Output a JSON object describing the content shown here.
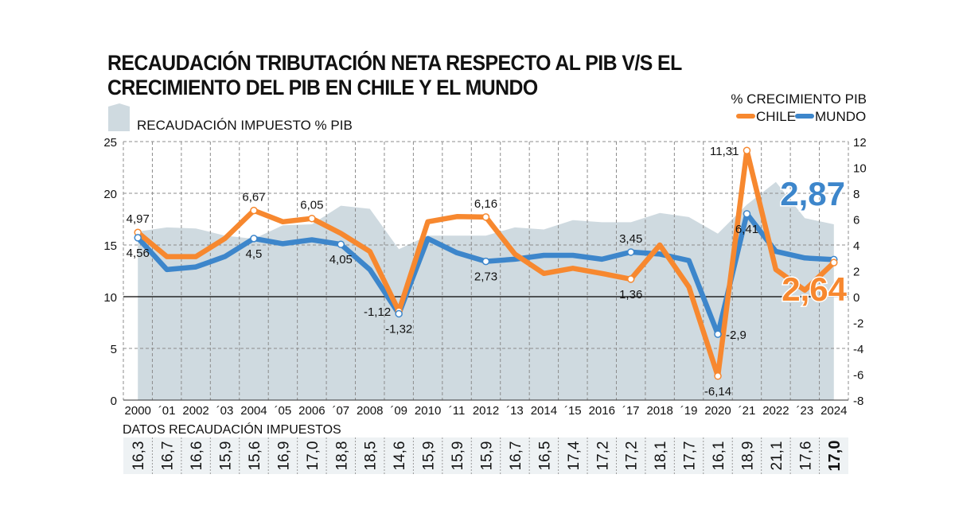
{
  "title": "RECAUDACIÓN TRIBUTACIÓN NETA RESPECTO AL PIB V/S EL CRECIMIENTO DEL PIB EN CHILE Y EL MUNDO",
  "colors": {
    "chile": "#f7882f",
    "mundo": "#3d86cb",
    "area": "#cfdae0",
    "grid": "#8c8c8c",
    "text": "#111111"
  },
  "chart_data": {
    "type": "line",
    "title": "RECAUDACIÓN TRIBUTACIÓN NETA RESPECTO AL PIB V/S EL CRECIMIENTO DEL PIB EN CHILE Y EL MUNDO",
    "area_legend": "RECAUDACIÓN IMPUESTO % PIB",
    "right_axis_title": "% CRECIMIENTO PIB",
    "categories": [
      "2000",
      "´01",
      "2002",
      "´03",
      "2004",
      "´05",
      "2006",
      "´07",
      "2008",
      "´09",
      "2010",
      "´11",
      "2012",
      "´13",
      "2014",
      "´15",
      "2016",
      "´17",
      "2018",
      "´19",
      "2020",
      "´21",
      "2022",
      "´23",
      "2024"
    ],
    "left_axis": {
      "min": 0,
      "max": 25,
      "ticks": [
        "0",
        "5",
        "10",
        "15",
        "20",
        "25"
      ]
    },
    "right_axis": {
      "min": -8,
      "max": 12,
      "ticks": [
        "-8",
        "-6",
        "-4",
        "-2",
        "0",
        "2",
        "4",
        "6",
        "8",
        "10",
        "12"
      ]
    },
    "area_series": {
      "name": "RECAUDACIÓN IMPUESTO % PIB",
      "values": [
        16.3,
        16.7,
        16.6,
        15.9,
        15.6,
        16.9,
        17.0,
        18.8,
        18.5,
        14.6,
        15.9,
        15.9,
        15.9,
        16.7,
        16.5,
        17.4,
        17.2,
        17.2,
        18.1,
        17.7,
        16.1,
        18.9,
        21.1,
        17.6,
        17.0
      ]
    },
    "series": [
      {
        "name": "CHILE",
        "values": [
          4.97,
          3.1,
          3.1,
          4.5,
          6.67,
          5.8,
          6.05,
          4.9,
          3.5,
          -1.12,
          5.8,
          6.2,
          6.16,
          3.3,
          1.8,
          2.2,
          1.8,
          1.36,
          4.0,
          0.75,
          -6.14,
          11.31,
          2.1,
          0.5,
          2.64
        ]
      },
      {
        "name": "MUNDO",
        "values": [
          4.56,
          2.1,
          2.3,
          3.1,
          4.5,
          4.1,
          4.4,
          4.05,
          2.1,
          -1.32,
          4.5,
          3.4,
          2.73,
          2.9,
          3.2,
          3.2,
          2.9,
          3.45,
          3.3,
          2.8,
          -2.9,
          6.41,
          3.5,
          3.0,
          2.87
        ]
      }
    ],
    "point_labels": {
      "chile": [
        {
          "i": 0,
          "text": "4,97",
          "pos": "above"
        },
        {
          "i": 4,
          "text": "6,67",
          "pos": "above"
        },
        {
          "i": 6,
          "text": "6,05",
          "pos": "above"
        },
        {
          "i": 9,
          "text": "-1,12",
          "pos": "left"
        },
        {
          "i": 12,
          "text": "6,16",
          "pos": "above"
        },
        {
          "i": 17,
          "text": "1,36",
          "pos": "below"
        },
        {
          "i": 20,
          "text": "-6,14",
          "pos": "below"
        },
        {
          "i": 21,
          "text": "11,31",
          "pos": "left"
        }
      ],
      "mundo": [
        {
          "i": 0,
          "text": "4,56",
          "pos": "below"
        },
        {
          "i": 4,
          "text": "4,5",
          "pos": "below"
        },
        {
          "i": 7,
          "text": "4,05",
          "pos": "below"
        },
        {
          "i": 9,
          "text": "-1,32",
          "pos": "below"
        },
        {
          "i": 12,
          "text": "2,73",
          "pos": "below"
        },
        {
          "i": 17,
          "text": "3,45",
          "pos": "above"
        },
        {
          "i": 20,
          "text": "-2,9",
          "pos": "right"
        },
        {
          "i": 21,
          "text": "6,41",
          "pos": "below"
        }
      ]
    },
    "highlights": [
      {
        "series": "MUNDO",
        "text": "2,87"
      },
      {
        "series": "CHILE",
        "text": "2,64"
      }
    ],
    "table": {
      "title": "DATOS RECAUDACIÓN IMPUESTOS",
      "values": [
        "16,3",
        "16,7",
        "16,6",
        "15,9",
        "15,6",
        "16,9",
        "17,0",
        "18,8",
        "18,5",
        "14,6",
        "15,9",
        "15,9",
        "15,9",
        "16,7",
        "16,5",
        "17,4",
        "17,2",
        "17,2",
        "18,1",
        "17,7",
        "16,1",
        "18,9",
        "21,1",
        "17,6",
        "17,0"
      ]
    }
  }
}
